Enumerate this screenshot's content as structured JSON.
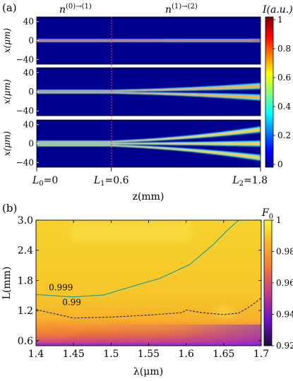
{
  "chart_data": [
    {
      "panel_label": "(a)",
      "type": "heatmap",
      "region_labels": {
        "left_main": "n",
        "left_sup": "(0)→(1)",
        "right_main": "n",
        "right_sup": "(1)→(2)"
      },
      "colorbar": {
        "label": "I(a.u.)",
        "range": [
          0,
          1
        ],
        "ticks": [
          "1",
          "0.8",
          "0.6",
          "0.4",
          "0.2",
          "0"
        ]
      },
      "ylabel": "x(μm)",
      "yticks": [
        "40",
        "0",
        "−40"
      ],
      "ylim": [
        -50,
        50
      ],
      "xlabel": "z(mm)",
      "xlim": [
        0,
        1.8
      ],
      "xtick_labels": [
        "L₀=0",
        "L₁=0.6",
        "L₂=1.8"
      ],
      "xticks": [
        0,
        0.6,
        1.8
      ],
      "boundary_z": 0.6,
      "rows": [
        {
          "mode_order": 0,
          "lobes_at_input": 1,
          "peak_x_at_L2": [
            0
          ]
        },
        {
          "mode_order": 1,
          "lobes_at_input": 2,
          "peak_x_at_L2": [
            -12,
            12
          ]
        },
        {
          "mode_order": 2,
          "lobes_at_input": 3,
          "peak_x_at_L2": [
            -30,
            0,
            30
          ]
        }
      ]
    },
    {
      "panel_label": "(b)",
      "type": "heatmap",
      "xlabel": "λ(μm)",
      "ylabel": "L(mm)",
      "xlim": [
        1.4,
        1.7
      ],
      "ylim": [
        0.5,
        3.0
      ],
      "xticks": [
        1.4,
        1.45,
        1.5,
        1.55,
        1.6,
        1.65,
        1.7
      ],
      "xtick_labels": [
        "1.4",
        "1.45",
        "1.5",
        "1.55",
        "1.6",
        "1.65",
        "1.7"
      ],
      "yticks": [
        0.6,
        1.2,
        1.8,
        2.4,
        3.0
      ],
      "ytick_labels": [
        "0.6",
        "1.2",
        "1.8",
        "2.4",
        "3.0"
      ],
      "colorbar": {
        "label": "F",
        "label_sub": "0",
        "range": [
          0.92,
          1.0
        ],
        "ticks": [
          "1",
          "0.98",
          "0.96",
          "0.94",
          "0.92"
        ]
      },
      "contours": [
        {
          "level": "0.999",
          "style": "solid",
          "color": "#1aa6a0",
          "x": [
            1.4,
            1.45,
            1.49,
            1.53,
            1.565,
            1.605,
            1.635,
            1.655,
            1.67
          ],
          "y": [
            1.52,
            1.47,
            1.51,
            1.69,
            1.84,
            2.12,
            2.5,
            2.8,
            3.0
          ]
        },
        {
          "level": "0.99",
          "style": "dashed",
          "color": "#2a2a5a",
          "x": [
            1.4,
            1.45,
            1.5,
            1.55,
            1.595,
            1.6,
            1.62,
            1.65,
            1.67,
            1.685,
            1.7
          ],
          "y": [
            1.22,
            1.05,
            1.07,
            1.11,
            1.16,
            1.21,
            1.16,
            1.12,
            1.15,
            1.28,
            1.45
          ]
        }
      ]
    }
  ]
}
